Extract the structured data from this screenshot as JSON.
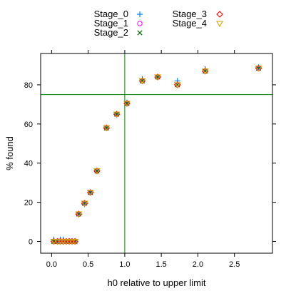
{
  "chart_data": {
    "type": "scatter",
    "xlabel": "h0 relative to upper limit",
    "ylabel": "% found",
    "xlim": [
      -0.15,
      3.02
    ],
    "ylim": [
      -6,
      96
    ],
    "x_ticks": [
      0.0,
      0.5,
      1.0,
      1.5,
      2.0,
      2.5
    ],
    "x_tick_labels": [
      "0.0",
      "0.5",
      "1.0",
      "1.5",
      "2.0",
      "2.5"
    ],
    "y_ticks": [
      0,
      20,
      40,
      60,
      80
    ],
    "y_tick_labels": [
      "0",
      "20",
      "40",
      "60",
      "80"
    ],
    "grid": false,
    "legend_position": "top",
    "reference_lines": {
      "vertical_x": 1.0,
      "horizontal_y": 75,
      "color": "#008000"
    },
    "series": [
      {
        "name": "Stage_0",
        "marker": "plus",
        "color": "#0080ff",
        "x": [
          0.03,
          0.08,
          0.12,
          0.16,
          0.2,
          0.24,
          0.28,
          0.32,
          0.37,
          0.45,
          0.53,
          0.62,
          0.75,
          0.89,
          1.03,
          1.24,
          1.45,
          1.72,
          2.1,
          2.83
        ],
        "y": [
          1,
          0,
          1,
          1,
          0,
          0,
          0,
          0,
          14,
          19,
          25,
          36,
          58,
          65,
          71,
          83,
          84,
          82,
          88,
          89
        ]
      },
      {
        "name": "Stage_1",
        "marker": "circle",
        "color": "#ff00ff",
        "x": [
          0.03,
          0.08,
          0.12,
          0.16,
          0.2,
          0.24,
          0.28,
          0.32,
          0.37,
          0.45,
          0.53,
          0.62,
          0.75,
          0.89,
          1.03,
          1.24,
          1.45,
          1.72,
          2.1,
          2.83
        ],
        "y": [
          0,
          0,
          0,
          0,
          0,
          0,
          0,
          0,
          14,
          19.5,
          25,
          36,
          58,
          65,
          70.5,
          82,
          84,
          80,
          87,
          88.5
        ]
      },
      {
        "name": "Stage_2",
        "marker": "x",
        "color": "#006400",
        "x": [
          0.03,
          0.08,
          0.12,
          0.16,
          0.2,
          0.24,
          0.28,
          0.32,
          0.37,
          0.45,
          0.53,
          0.62,
          0.75,
          0.89,
          1.03,
          1.24,
          1.45,
          1.72,
          2.1,
          2.83
        ],
        "y": [
          0,
          0,
          0,
          0,
          0,
          0,
          0,
          0,
          14,
          19.5,
          25,
          36,
          58,
          65,
          70.5,
          82,
          84,
          80,
          87,
          88.5
        ]
      },
      {
        "name": "Stage_3",
        "marker": "diamond",
        "color": "#ff0000",
        "x": [
          0.03,
          0.08,
          0.12,
          0.16,
          0.2,
          0.24,
          0.28,
          0.32,
          0.37,
          0.45,
          0.53,
          0.62,
          0.75,
          0.89,
          1.03,
          1.24,
          1.45,
          1.72,
          2.1,
          2.83
        ],
        "y": [
          0,
          0,
          0,
          0,
          0,
          0,
          0,
          0,
          14,
          19.5,
          25,
          36,
          58,
          65,
          70.5,
          82,
          84,
          80,
          87,
          88.5
        ]
      },
      {
        "name": "Stage_4",
        "marker": "triangle-down",
        "color": "#d4a000",
        "x": [
          0.03,
          0.08,
          0.12,
          0.16,
          0.2,
          0.24,
          0.28,
          0.32,
          0.37,
          0.45,
          0.53,
          0.62,
          0.75,
          0.89,
          1.03,
          1.24,
          1.45,
          1.72,
          2.1,
          2.83
        ],
        "y": [
          0,
          0,
          0,
          0,
          0,
          0,
          0,
          0,
          14,
          19.5,
          25,
          36,
          58,
          65,
          70.5,
          82,
          84,
          80,
          87,
          88.5
        ]
      }
    ]
  }
}
